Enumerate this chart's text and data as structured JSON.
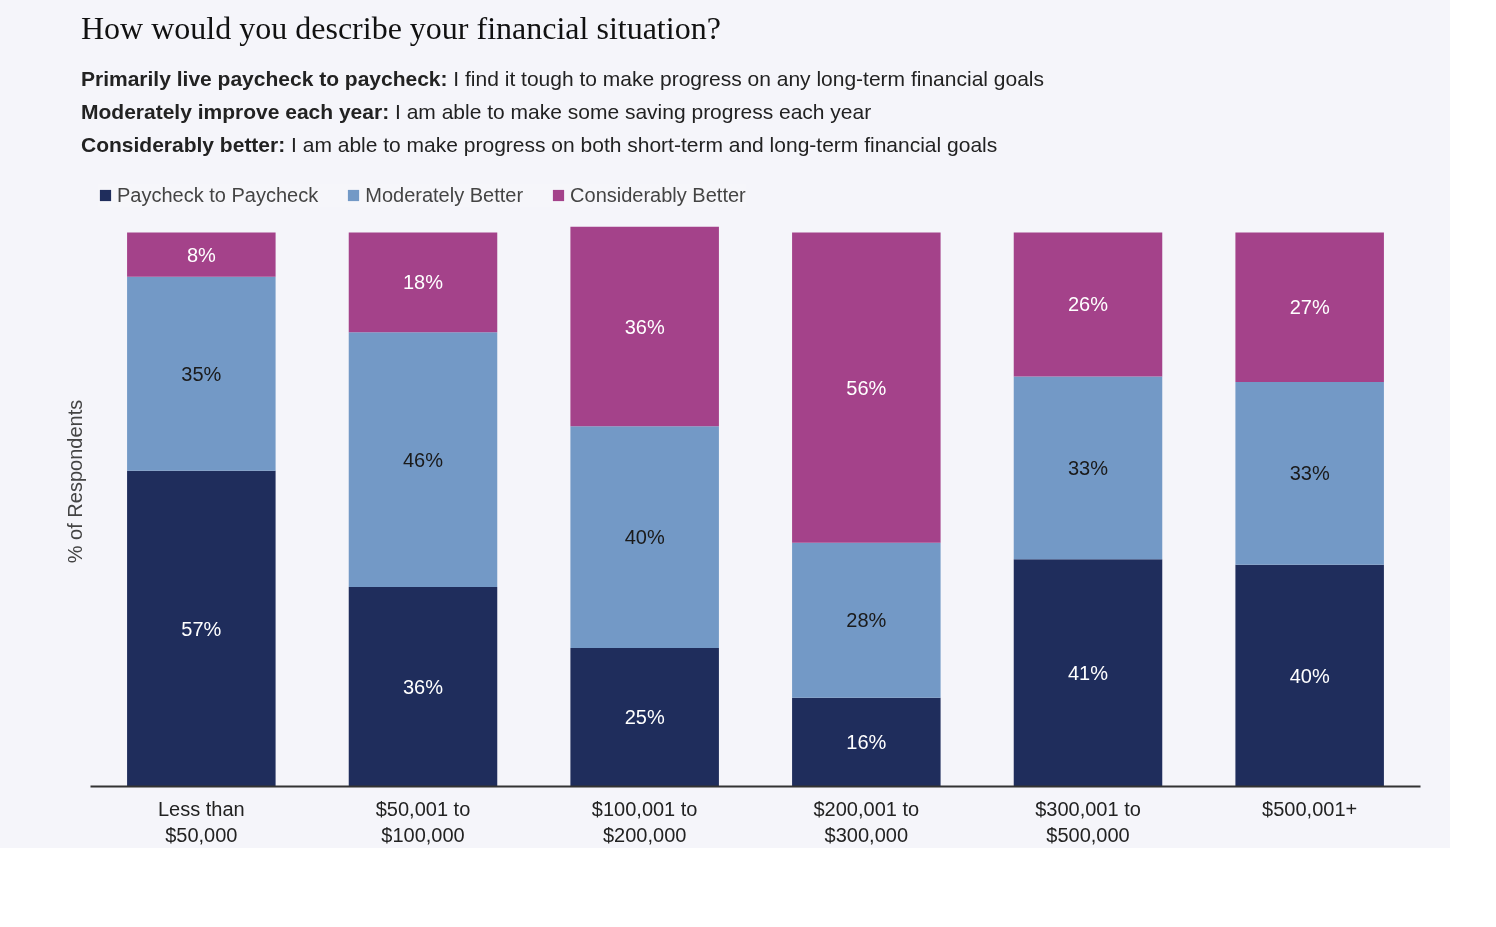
{
  "chart_data": {
    "type": "bar",
    "title": "How would you describe your financial situation?",
    "subtitle": "Primarily live paycheck to paycheck: I find it tough to make progress on any long-term financial goals\nModerately improve each year: I am able to make some saving progress each year\nConsiderably better: I am able to make progress on both short-term and long-term financial goals",
    "ylabel": "% of Respondents",
    "categories": [
      "Less than $50,000",
      "$50,001 to $100,000",
      "$100,001 to $200,000",
      "$200,001 to $300,000",
      "$300,001 to $500,000",
      "$500,001+"
    ],
    "stacked": true,
    "grid": false,
    "legend": "top left",
    "series": [
      {
        "name": "Paycheck to Paycheck",
        "color": "#1f2d5c",
        "values": [
          57,
          36,
          25,
          16,
          41,
          40
        ],
        "value_labels": [
          "57%",
          "36%",
          "25%",
          "16%",
          "41%",
          "40%"
        ]
      },
      {
        "name": "Moderately Better",
        "color": "#7399c6",
        "values": [
          35,
          46,
          40,
          28,
          33,
          33
        ],
        "value_labels": [
          "35%",
          "46%",
          "40%",
          "28%",
          "33%",
          "33%"
        ]
      },
      {
        "name": "Considerably Better",
        "color": "#a4428a",
        "values": [
          8,
          18,
          36,
          56,
          26,
          27
        ],
        "value_labels": [
          "8%",
          "18%",
          "36%",
          "56%",
          "26%",
          "27%"
        ]
      }
    ]
  }
}
